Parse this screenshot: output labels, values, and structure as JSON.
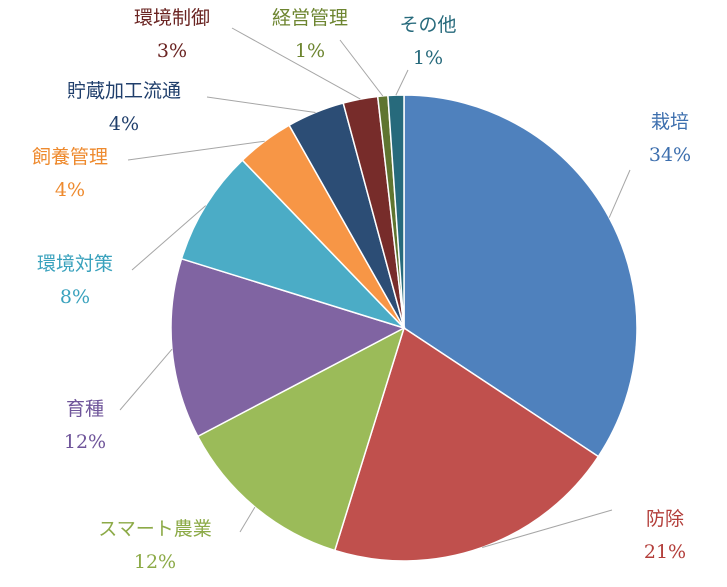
{
  "chart_data": {
    "type": "pie",
    "title": "",
    "legend": "none",
    "categories": [
      "栽培",
      "防除",
      "スマート農業",
      "育種",
      "環境対策",
      "飼養管理",
      "貯蔵加工流通",
      "環境制御",
      "経営管理",
      "その他"
    ],
    "values": [
      34,
      21,
      12,
      12,
      8,
      4,
      4,
      3,
      1,
      1
    ],
    "value_labels": [
      "34%",
      "21%",
      "12%",
      "12%",
      "8%",
      "4%",
      "4%",
      "3%",
      "1%",
      "1%"
    ],
    "colors": [
      "#4f81bd",
      "#c0504d",
      "#9bbb59",
      "#8064a2",
      "#4bacc6",
      "#f79646",
      "#2c4d75",
      "#772c2a",
      "#5f7530",
      "#276a7c"
    ],
    "label_colors": [
      "#3d6fae",
      "#b33e3a",
      "#8caa47",
      "#6f559a",
      "#3aa2bd",
      "#ee8a2e",
      "#1f3e6b",
      "#6a2422",
      "#6d8530",
      "#276a7c"
    ],
    "start_angle_deg": 0,
    "direction": "clockwise"
  }
}
